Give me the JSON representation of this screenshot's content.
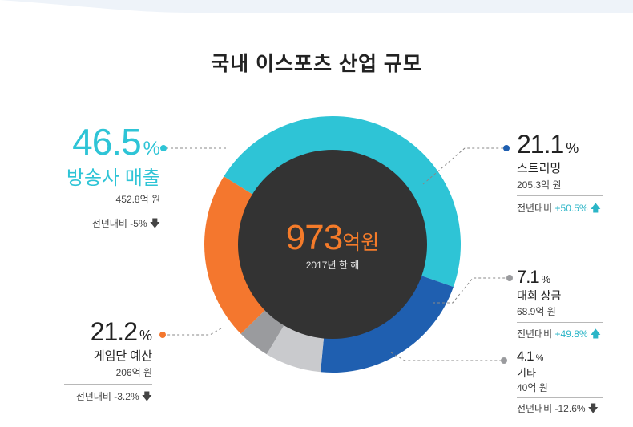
{
  "title": "국내 이스포츠 산업 규모",
  "center": {
    "value": "973",
    "unit": "억원",
    "caption": "2017년 한 해"
  },
  "percent_sign": "%",
  "segments": [
    {
      "key": "broadcast",
      "label": "방송사 매출",
      "percent": "46.5",
      "amount": "452.8억 원",
      "yoy_prefix": "전년대비",
      "yoy": "-5%",
      "direction": "down",
      "color": "#2ec4d6"
    },
    {
      "key": "streaming",
      "label": "스트리밍",
      "percent": "21.1",
      "amount": "205.3억 원",
      "yoy_prefix": "전년대비",
      "yoy": "+50.5%",
      "direction": "up",
      "color": "#1f5fb0"
    },
    {
      "key": "prize",
      "label": "대회 상금",
      "percent": "7.1",
      "amount": "68.9억 원",
      "yoy_prefix": "전년대비",
      "yoy": "+49.8%",
      "direction": "up",
      "color": "#c9cacd"
    },
    {
      "key": "other",
      "label": "기타",
      "percent": "4.1",
      "amount": "40억 원",
      "yoy_prefix": "전년대비",
      "yoy": "-12.6%",
      "direction": "down",
      "color": "#9a9b9e"
    },
    {
      "key": "team",
      "label": "게임단 예산",
      "percent": "21.2",
      "amount": "206억 원",
      "yoy_prefix": "전년대비",
      "yoy": "-3.2%",
      "direction": "down",
      "color": "#f4772e"
    }
  ],
  "chart_data": {
    "type": "pie",
    "title": "국내 이스포츠 산업 규모",
    "total": "973억원",
    "categories": [
      "방송사 매출",
      "스트리밍",
      "대회 상금",
      "기타",
      "게임단 예산"
    ],
    "values": [
      46.5,
      21.1,
      7.1,
      4.1,
      21.2
    ],
    "amounts": [
      "452.8억 원",
      "205.3억 원",
      "68.9억 원",
      "40억 원",
      "206억 원"
    ],
    "yoy_change": [
      "-5%",
      "+50.5%",
      "+49.8%",
      "-12.6%",
      "-3.2%"
    ]
  }
}
